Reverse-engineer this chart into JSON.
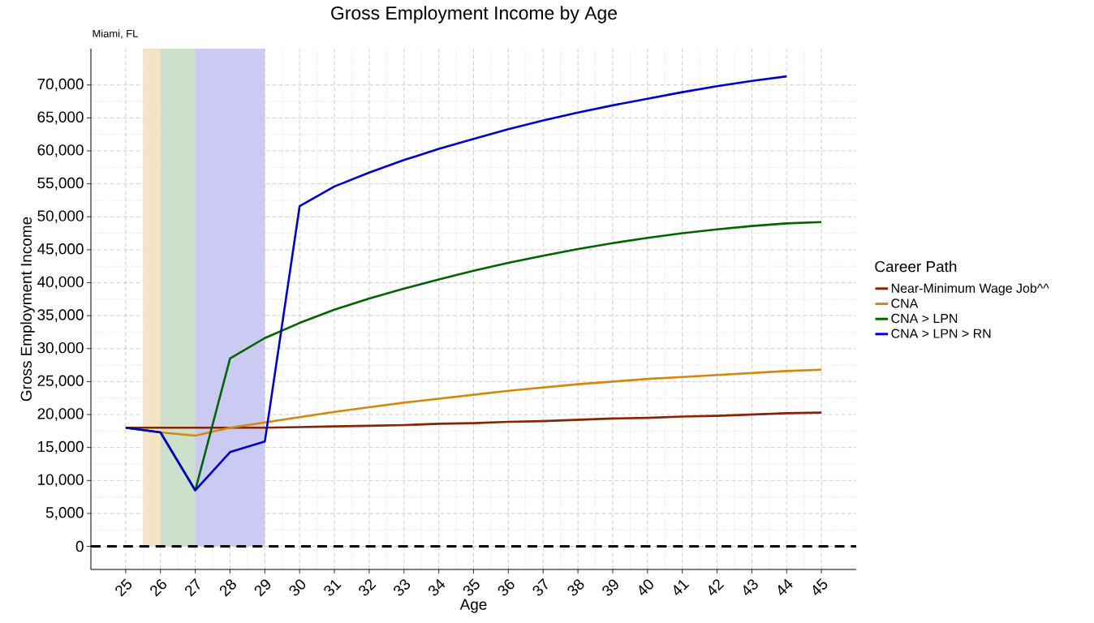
{
  "chart_data": {
    "type": "line",
    "title": "Gross Employment Income by Age",
    "subtitle": "Miami, FL",
    "xlabel": "Age",
    "ylabel": "Gross Employment Income",
    "legend_title": "Career Path",
    "x": [
      25,
      26,
      27,
      28,
      29,
      30,
      31,
      32,
      33,
      34,
      35,
      36,
      37,
      38,
      39,
      40,
      41,
      42,
      43,
      44,
      45
    ],
    "series": [
      {
        "name": "Near-Minimum Wage Job^^",
        "color": "#8b2200",
        "values": [
          18000,
          18000,
          18000,
          18000,
          18000,
          18100,
          18200,
          18300,
          18400,
          18600,
          18700,
          18900,
          19000,
          19200,
          19400,
          19500,
          19700,
          19800,
          20000,
          20200,
          20300
        ]
      },
      {
        "name": "CNA",
        "color": "#d4880a",
        "values": [
          null,
          17300,
          16800,
          18000,
          18800,
          19600,
          20400,
          21100,
          21800,
          22400,
          23000,
          23600,
          24100,
          24600,
          25000,
          25400,
          25700,
          26000,
          26300,
          26600,
          26800
        ]
      },
      {
        "name": "CNA > LPN",
        "color": "#006400",
        "values": [
          18000,
          17300,
          8500,
          28500,
          31600,
          33900,
          35900,
          37600,
          39100,
          40500,
          41800,
          43000,
          44100,
          45100,
          46000,
          46800,
          47500,
          48100,
          48600,
          49000,
          49200
        ]
      },
      {
        "name": "CNA > LPN > RN",
        "color": "#0000cd",
        "values": [
          18000,
          17300,
          8500,
          14300,
          15900,
          51600,
          54600,
          56700,
          58600,
          60300,
          61800,
          63300,
          64600,
          65800,
          66900,
          67900,
          68900,
          69800,
          70600,
          71300,
          null
        ]
      }
    ],
    "xlim": [
      24,
      46
    ],
    "ylim": [
      -3500,
      75500
    ],
    "xticks": [
      25,
      26,
      27,
      28,
      29,
      30,
      31,
      32,
      33,
      34,
      35,
      36,
      37,
      38,
      39,
      40,
      41,
      42,
      43,
      44,
      45
    ],
    "yticks": [
      0,
      {
        "value": 5000,
        "label": "5,000"
      },
      {
        "value": 10000,
        "label": "10,000"
      },
      {
        "value": 15000,
        "label": "15,000"
      },
      {
        "value": 20000,
        "label": "20,000"
      },
      {
        "value": 25000,
        "label": "25,000"
      },
      {
        "value": 30000,
        "label": "30,000"
      },
      {
        "value": 35000,
        "label": "35,000"
      },
      {
        "value": 40000,
        "label": "40,000"
      },
      {
        "value": 45000,
        "label": "45,000"
      },
      {
        "value": 50000,
        "label": "50,000"
      },
      {
        "value": 55000,
        "label": "55,000"
      },
      {
        "value": 60000,
        "label": "60,000"
      },
      {
        "value": 65000,
        "label": "65,000"
      },
      {
        "value": 70000,
        "label": "70,000"
      }
    ],
    "bands": [
      {
        "axis": "x",
        "from": 25.5,
        "to": 26,
        "color": "#f3e4c6"
      },
      {
        "axis": "x",
        "from": 26,
        "to": 27,
        "color": "#cde0cc"
      },
      {
        "axis": "x",
        "from": 27,
        "to": 29,
        "color": "#cacaf3"
      }
    ],
    "ref_lines": [
      {
        "axis": "y",
        "value": 0,
        "color": "#000000",
        "line_style": "dashed"
      }
    ],
    "grid": true,
    "legend": "right",
    "marker": "none",
    "line_style": "solid"
  }
}
